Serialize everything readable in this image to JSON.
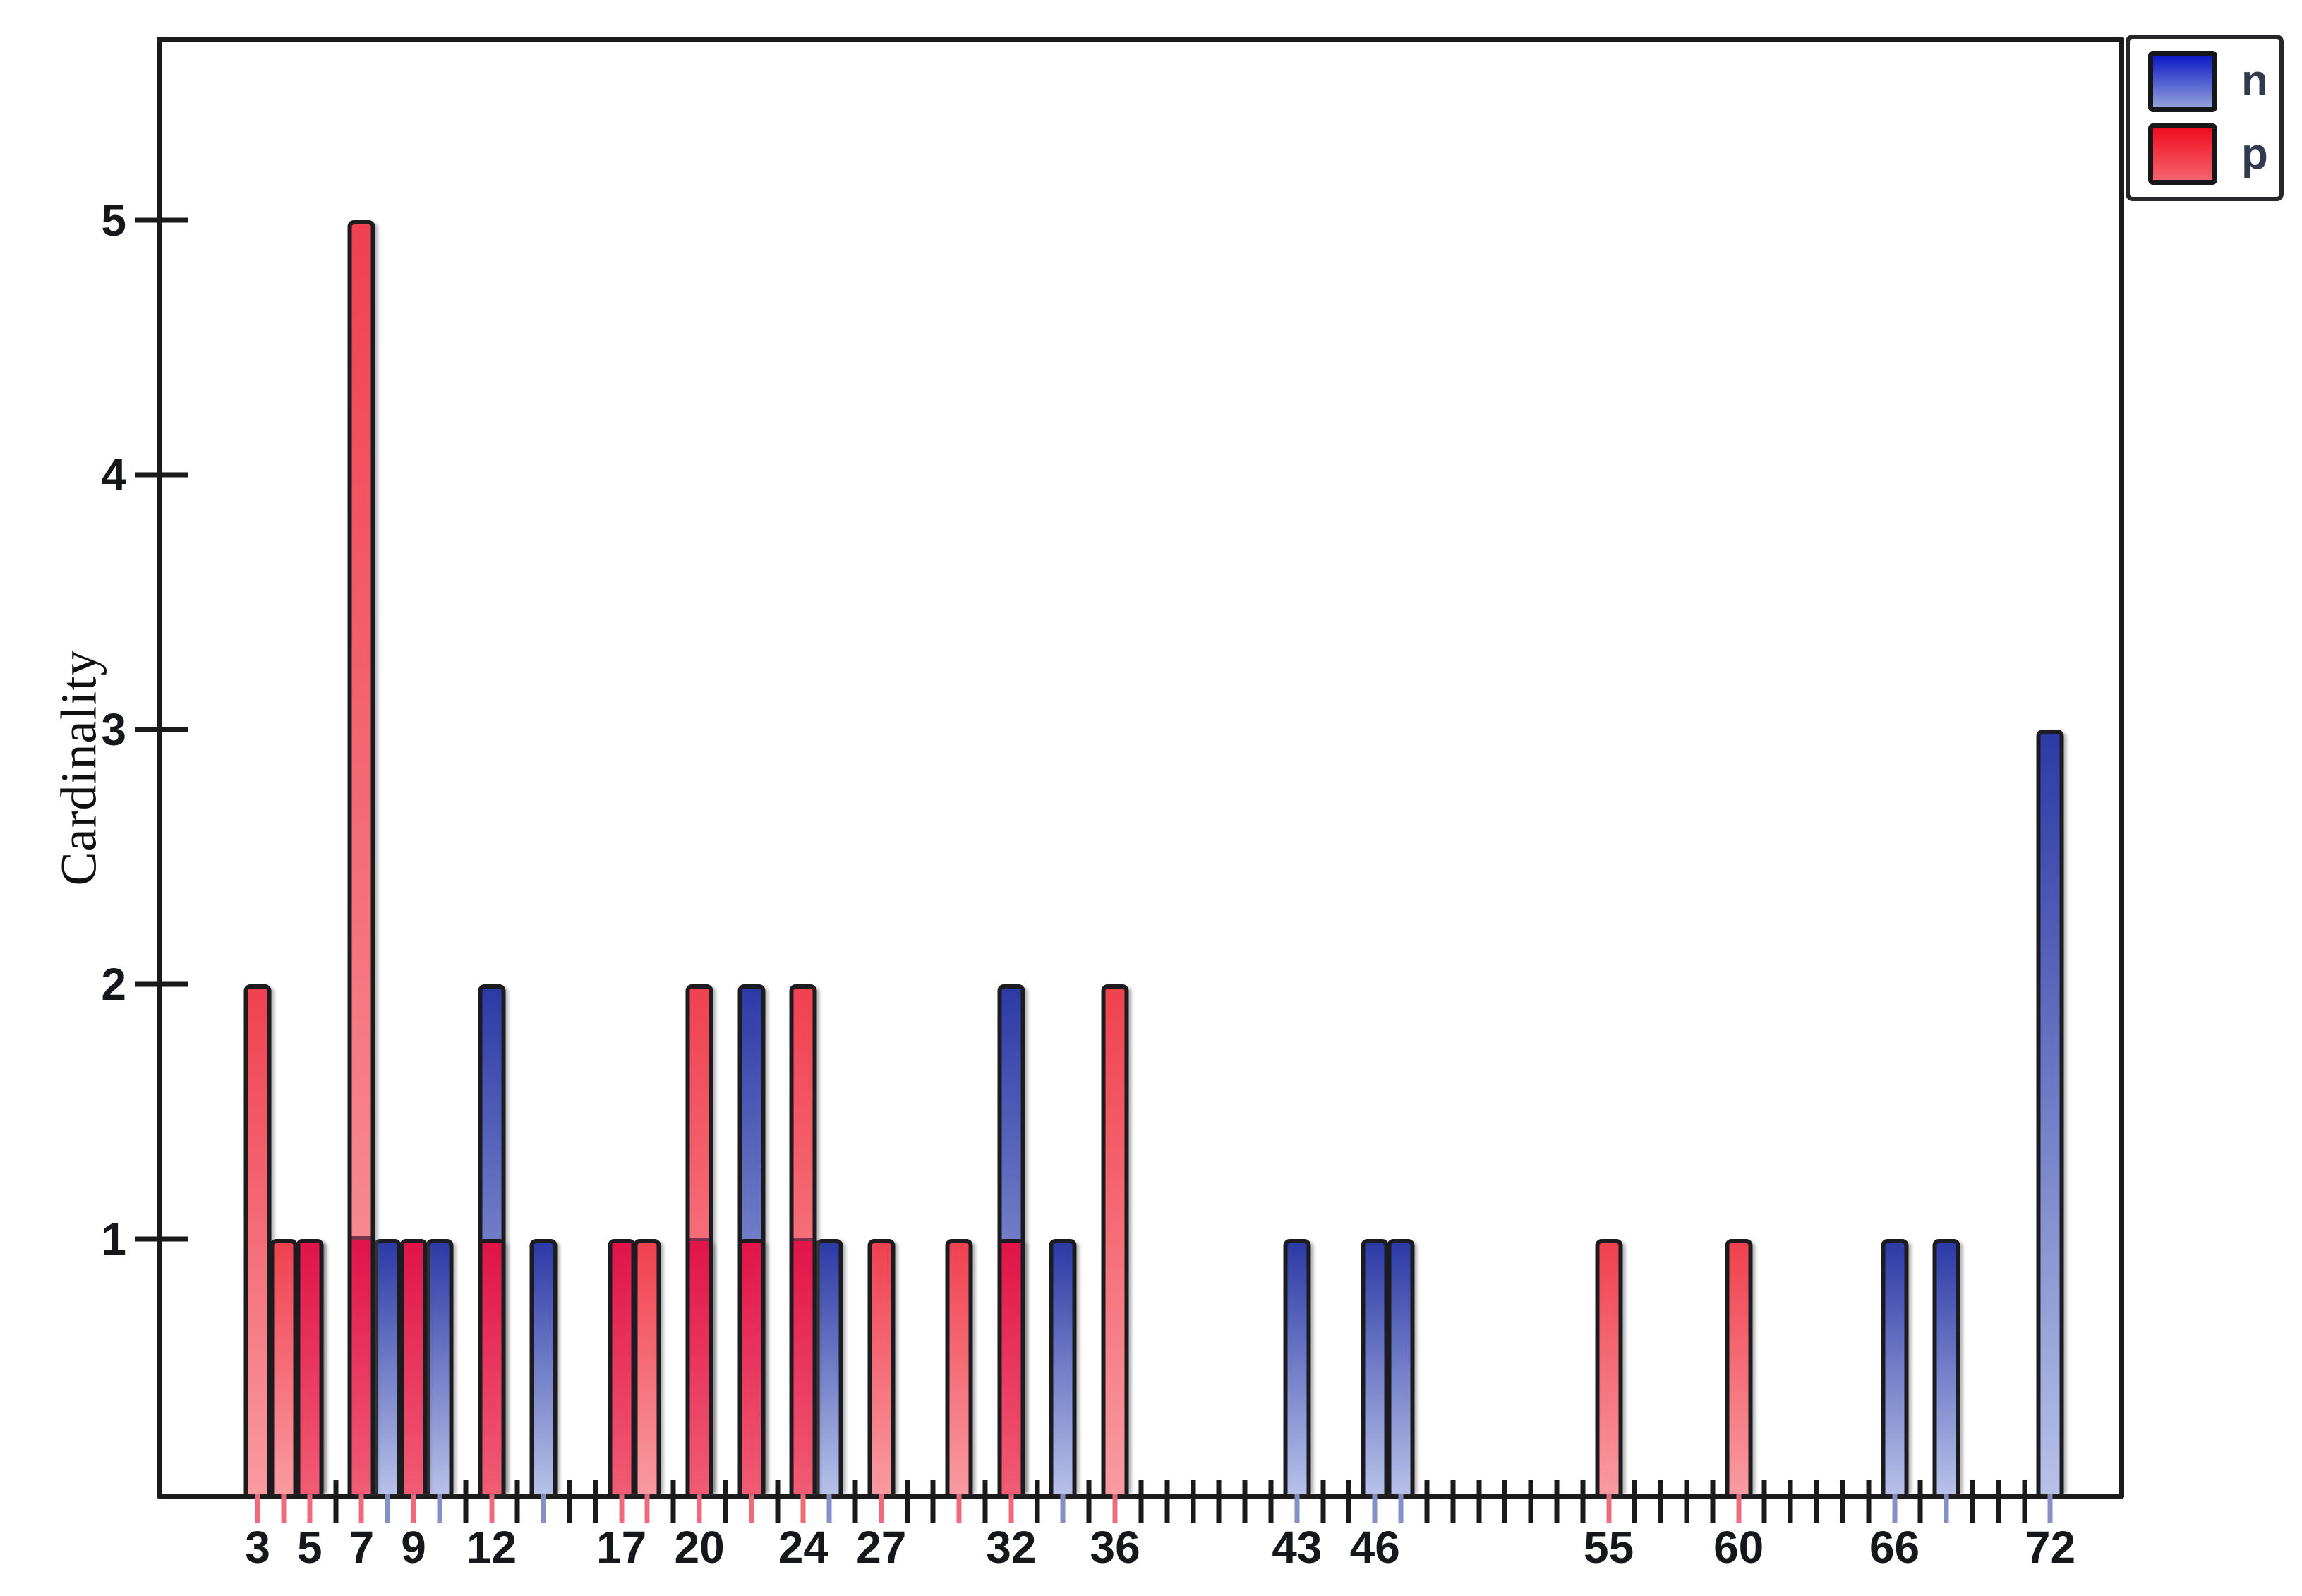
{
  "chart_data": {
    "type": "bar",
    "title": "",
    "xlabel": "",
    "ylabel": "Cardinality",
    "legend_position": "top-right",
    "grid": false,
    "xlim": [
      -0.7,
      74.65
    ],
    "ylim": [
      0,
      5.7
    ],
    "y_ticks": [
      1,
      2,
      3,
      4,
      5
    ],
    "x_tick_start": 3,
    "x_tick_end": 72,
    "x_labeled_ticks": [
      3,
      5,
      7,
      9,
      12,
      17,
      20,
      24,
      27,
      32,
      36,
      43,
      46,
      55,
      60,
      66,
      72
    ],
    "bar_width_units": 1,
    "draw_order_note": "series n drawn first (behind), series p drawn in front; overlapping region renders dark crimson",
    "series": [
      {
        "name": "n",
        "color": "#2c3aa8",
        "points": [
          {
            "x": 5,
            "y": 1
          },
          {
            "x": 7,
            "y": 1
          },
          {
            "x": 8,
            "y": 1
          },
          {
            "x": 9,
            "y": 1
          },
          {
            "x": 10,
            "y": 1
          },
          {
            "x": 12,
            "y": 2
          },
          {
            "x": 14,
            "y": 1
          },
          {
            "x": 17,
            "y": 1
          },
          {
            "x": 20,
            "y": 1
          },
          {
            "x": 22,
            "y": 2
          },
          {
            "x": 24,
            "y": 1
          },
          {
            "x": 25,
            "y": 1
          },
          {
            "x": 32,
            "y": 2
          },
          {
            "x": 34,
            "y": 1
          },
          {
            "x": 43,
            "y": 1
          },
          {
            "x": 46,
            "y": 1
          },
          {
            "x": 47,
            "y": 1
          },
          {
            "x": 66,
            "y": 1
          },
          {
            "x": 68,
            "y": 1
          },
          {
            "x": 72,
            "y": 3
          }
        ]
      },
      {
        "name": "p",
        "color": "#ee2a3c",
        "points": [
          {
            "x": 3,
            "y": 2
          },
          {
            "x": 4,
            "y": 1
          },
          {
            "x": 5,
            "y": 1
          },
          {
            "x": 7,
            "y": 5
          },
          {
            "x": 9,
            "y": 1
          },
          {
            "x": 12,
            "y": 1
          },
          {
            "x": 17,
            "y": 1
          },
          {
            "x": 18,
            "y": 1
          },
          {
            "x": 20,
            "y": 2
          },
          {
            "x": 22,
            "y": 1
          },
          {
            "x": 24,
            "y": 2
          },
          {
            "x": 27,
            "y": 1
          },
          {
            "x": 30,
            "y": 1
          },
          {
            "x": 32,
            "y": 1
          },
          {
            "x": 36,
            "y": 2
          },
          {
            "x": 55,
            "y": 1
          },
          {
            "x": 60,
            "y": 1
          }
        ]
      }
    ]
  },
  "colors": {
    "n_bar_top": "#2c3aa6",
    "n_bar_bottom": "#b7c1e8",
    "p_bar_top": "#f0414f",
    "p_bar_bottom": "#f99ba1",
    "overlap_top": "#e01449",
    "overlap_bottom": "#f15c74",
    "legend_n_top": "#0d18c6",
    "legend_n_bottom": "#93a1da",
    "legend_p_top": "#ef0d1e",
    "legend_p_bottom": "#f4636e",
    "tick_under_p_bar": "#ef6b7c",
    "tick_under_n_bar": "#8590c8",
    "axis": "#1a1a1a",
    "text": "#16171b"
  }
}
